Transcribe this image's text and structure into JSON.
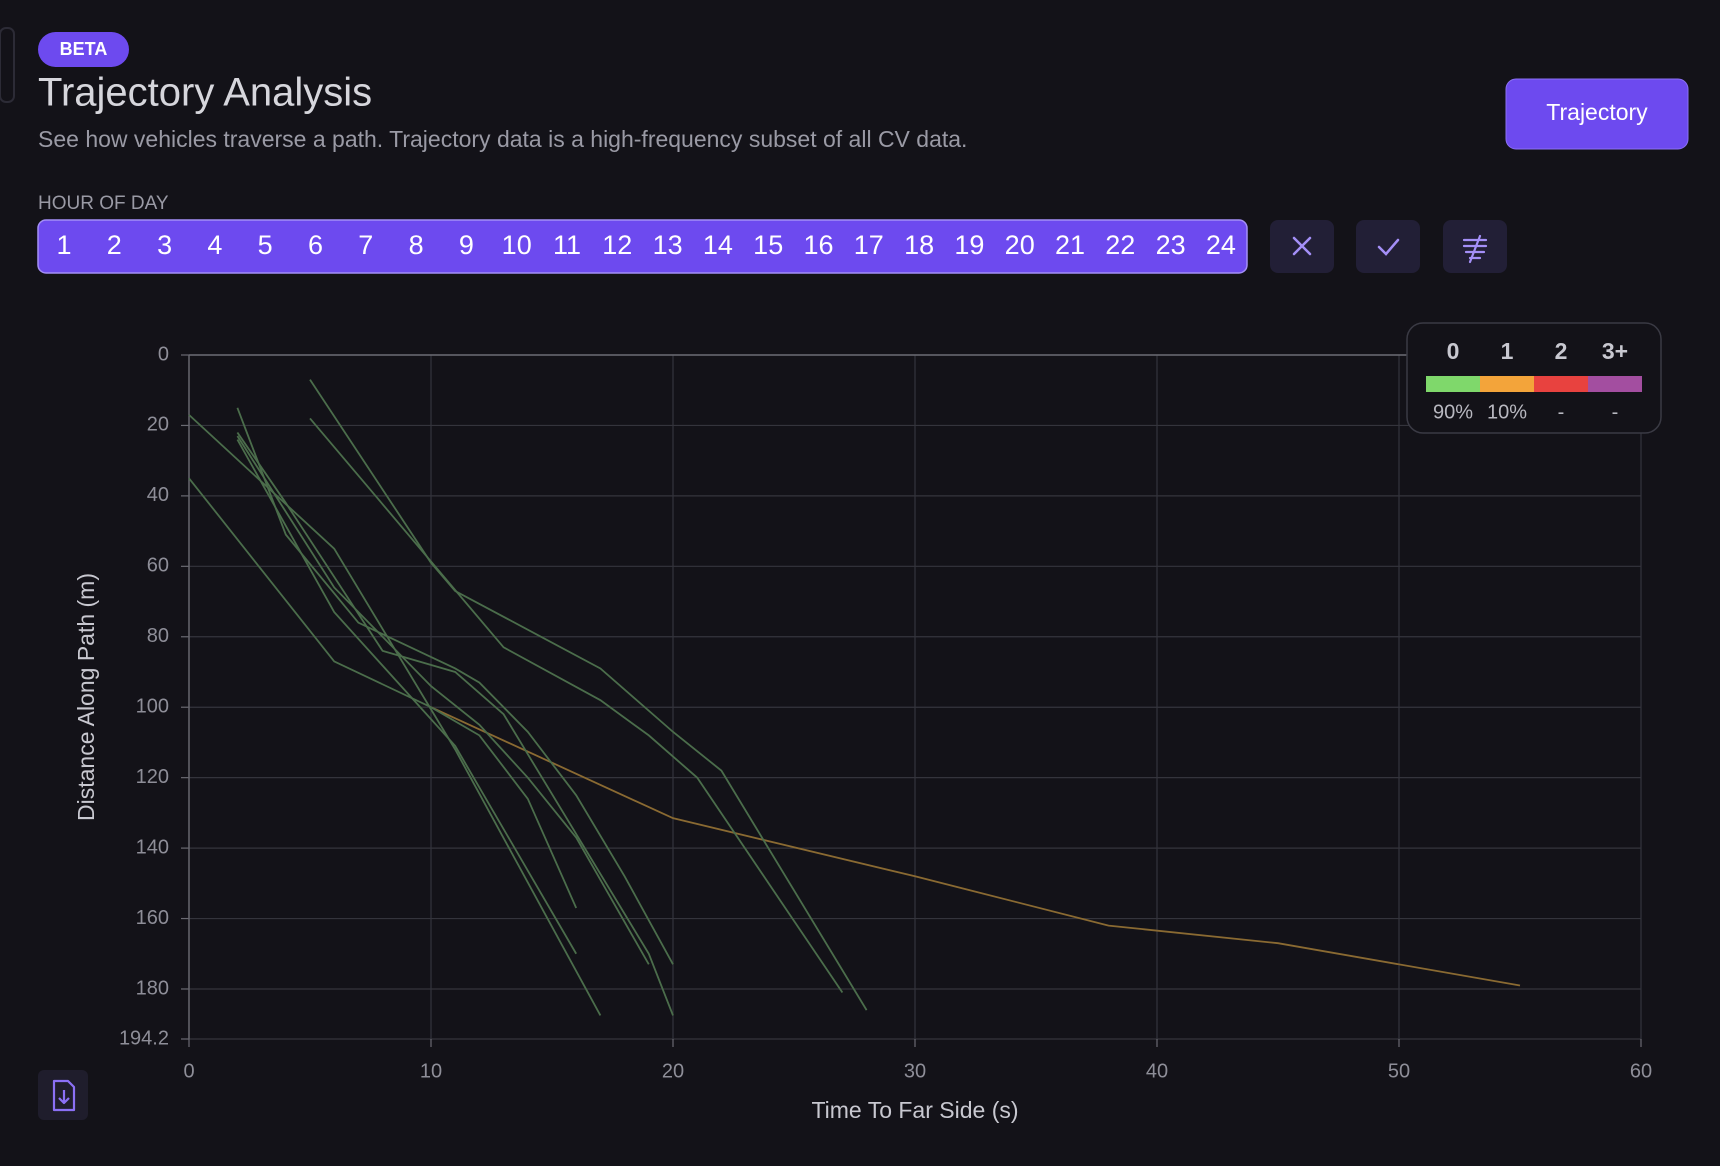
{
  "header": {
    "badge": "BETA",
    "title": "Trajectory Analysis",
    "subtitle": "See how vehicles traverse a path. Trajectory data is a high-frequency subset of all CV data.",
    "button": "Trajectory"
  },
  "filter": {
    "label": "HOUR OF DAY",
    "hours": [
      1,
      2,
      3,
      4,
      5,
      6,
      7,
      8,
      9,
      10,
      11,
      12,
      13,
      14,
      15,
      16,
      17,
      18,
      19,
      20,
      21,
      22,
      23,
      24
    ]
  },
  "legend": {
    "labels": [
      "0",
      "1",
      "2",
      "3+"
    ],
    "colors": [
      "#7fd86b",
      "#f3a43a",
      "#e8423f",
      "#a34ea0"
    ],
    "shares": [
      "90%",
      "10%",
      "-",
      "-"
    ]
  },
  "chart_data": {
    "type": "line",
    "x_label": "Time To Far Side (s)",
    "y_label": "Distance Along Path (m)",
    "xlim": [
      0,
      60
    ],
    "xticks": [
      0,
      10,
      20,
      30,
      40,
      50,
      60
    ],
    "ylim": [
      0,
      194.2
    ],
    "yticks": [
      0,
      20,
      40,
      60,
      80,
      100,
      120,
      140,
      160,
      180,
      194.2
    ],
    "y_inverted": true,
    "grid": true,
    "series": [
      {
        "color": "#8a6a32",
        "x": [
          10,
          20,
          30,
          38,
          45,
          55
        ],
        "values": [
          100,
          131.5,
          148,
          162,
          167,
          179
        ]
      },
      {
        "color": "#4b6d4b",
        "x": [
          5,
          10,
          11,
          17,
          20,
          22,
          28
        ],
        "values": [
          7,
          59,
          67,
          89,
          107,
          118,
          186
        ]
      },
      {
        "color": "#4b6d4b",
        "x": [
          5,
          13,
          17,
          19,
          21,
          27
        ],
        "values": [
          18,
          83,
          98,
          108,
          120,
          181
        ]
      },
      {
        "color": "#4b6d4b",
        "x": [
          0,
          6,
          11,
          17
        ],
        "values": [
          17,
          55,
          112,
          187.5
        ]
      },
      {
        "color": "#4b6d4b",
        "x": [
          0,
          6,
          10,
          12,
          14,
          16
        ],
        "values": [
          35,
          87,
          100,
          108,
          126,
          157
        ]
      },
      {
        "color": "#4b6d4b",
        "x": [
          2,
          4,
          7,
          11,
          12,
          14,
          16,
          18,
          20
        ],
        "values": [
          15,
          51,
          76,
          89,
          93,
          107,
          125,
          148,
          173
        ]
      },
      {
        "color": "#4b6d4b",
        "x": [
          2,
          4,
          8,
          11,
          13,
          19,
          20
        ],
        "values": [
          22,
          42,
          84,
          90,
          102,
          170,
          187.5
        ]
      },
      {
        "color": "#4b6d4b",
        "x": [
          2,
          6,
          10,
          12,
          14,
          16,
          19
        ],
        "values": [
          23,
          66,
          94,
          105,
          120,
          137,
          173
        ]
      },
      {
        "color": "#4b6d4b",
        "x": [
          2,
          6,
          11,
          16
        ],
        "values": [
          24,
          73,
          111,
          170
        ]
      }
    ]
  }
}
